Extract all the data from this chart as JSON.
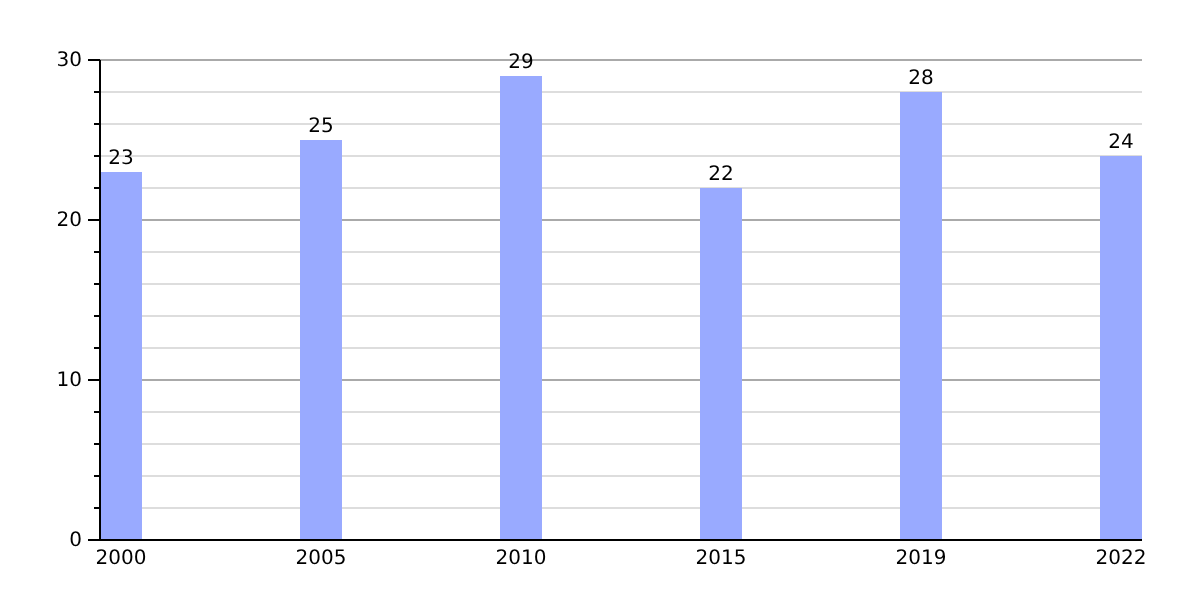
{
  "chart_data": {
    "type": "bar",
    "categories": [
      "2000",
      "2005",
      "2010",
      "2015",
      "2019",
      "2022"
    ],
    "values": [
      23,
      25,
      29,
      22,
      28,
      24
    ],
    "color": "#99aaff",
    "ylim": [
      0,
      30
    ],
    "yticks": [
      0,
      {
        "value": 2,
        "label": null
      },
      {
        "value": 4,
        "label": null
      },
      {
        "value": 6,
        "label": null
      },
      {
        "value": 8,
        "label": null
      },
      10,
      {
        "value": 12,
        "label": null
      },
      {
        "value": 14,
        "label": null
      },
      {
        "value": 16,
        "label": null
      },
      {
        "value": 18,
        "label": null
      },
      20,
      {
        "value": 22,
        "label": null
      },
      {
        "value": 24,
        "label": null
      },
      {
        "value": 26,
        "label": null
      },
      {
        "value": 28,
        "label": null
      },
      30
    ],
    "grid": "y",
    "data_labels": true
  }
}
